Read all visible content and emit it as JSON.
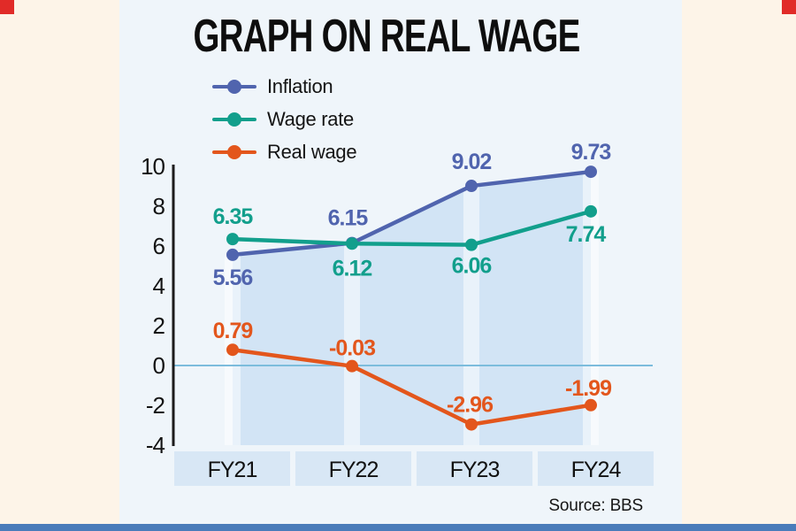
{
  "page": {
    "title": "GRAPH ON REAL WAGE",
    "source": "Source: BBS"
  },
  "colors": {
    "page_bg": "#fdf4e8",
    "panel_bg": "#eff5fa",
    "area_fill": "#d2e4f5",
    "category_band": "rgba(255,255,255,0.5)",
    "xbox_bg": "#d8e7f5",
    "zero_line": "#7cbcdc",
    "axis": "#1c1c1c",
    "accent_red": "#e12b28",
    "footer_bar": "#4a7cba"
  },
  "chart_data": {
    "type": "line",
    "title": "GRAPH ON REAL WAGE",
    "categories": [
      "FY21",
      "FY22",
      "FY23",
      "FY24"
    ],
    "series": [
      {
        "name": "Inflation",
        "color": "#5064ae",
        "values": [
          5.56,
          6.15,
          9.02,
          9.73
        ]
      },
      {
        "name": "Wage rate",
        "color": "#129f8c",
        "values": [
          6.35,
          6.12,
          6.06,
          7.74
        ]
      },
      {
        "name": "Real wage",
        "color": "#e3561c",
        "values": [
          0.79,
          -0.03,
          -2.96,
          -1.99
        ]
      }
    ],
    "yticks": [
      10,
      8,
      6,
      4,
      2,
      0,
      -2,
      -4
    ],
    "ylim": [
      -4,
      10
    ],
    "grid": "zero line only",
    "legend_position": "top-left",
    "area_under_series": "Inflation",
    "point_labels_shown": true,
    "point_label_format": "2 decimals"
  }
}
